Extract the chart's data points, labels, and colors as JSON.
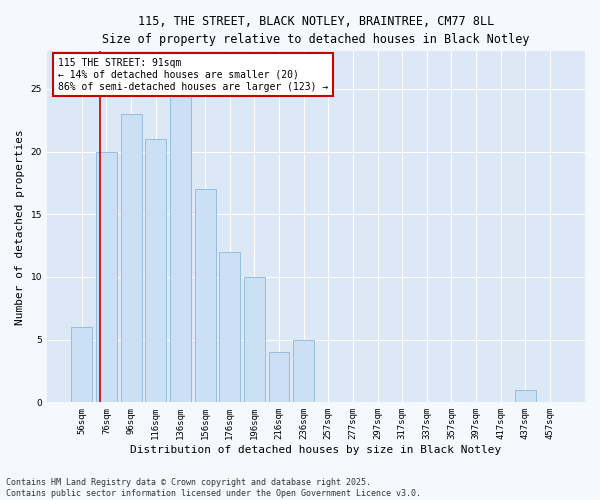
{
  "title1": "115, THE STREET, BLACK NOTLEY, BRAINTREE, CM77 8LL",
  "title2": "Size of property relative to detached houses in Black Notley",
  "xlabel": "Distribution of detached houses by size in Black Notley",
  "ylabel": "Number of detached properties",
  "categories": [
    "56sqm",
    "76sqm",
    "96sqm",
    "116sqm",
    "136sqm",
    "156sqm",
    "176sqm",
    "196sqm",
    "216sqm",
    "236sqm",
    "257sqm",
    "277sqm",
    "297sqm",
    "317sqm",
    "337sqm",
    "357sqm",
    "397sqm",
    "417sqm",
    "437sqm",
    "457sqm"
  ],
  "values": [
    6,
    20,
    23,
    21,
    25,
    17,
    12,
    10,
    4,
    5,
    0,
    0,
    0,
    0,
    0,
    0,
    0,
    0,
    1,
    0
  ],
  "bar_color": "#cce0f5",
  "bar_edge_color": "#8ab8d8",
  "vline_color": "#cc0000",
  "vline_x": 0.75,
  "annotation_text": "115 THE STREET: 91sqm\n← 14% of detached houses are smaller (20)\n86% of semi-detached houses are larger (123) →",
  "annotation_box_color": "#ffffff",
  "annotation_box_edge": "#cc0000",
  "ylim": [
    0,
    28
  ],
  "yticks": [
    0,
    5,
    10,
    15,
    20,
    25
  ],
  "plot_bg": "#dce8f5",
  "fig_bg": "#f5f8fc",
  "footer1": "Contains HM Land Registry data © Crown copyright and database right 2025.",
  "footer2": "Contains public sector information licensed under the Open Government Licence v3.0.",
  "title_fontsize": 8.5,
  "subtitle_fontsize": 8,
  "ylabel_fontsize": 8,
  "xlabel_fontsize": 8,
  "tick_fontsize": 6.5,
  "ann_fontsize": 7,
  "footer_fontsize": 6
}
